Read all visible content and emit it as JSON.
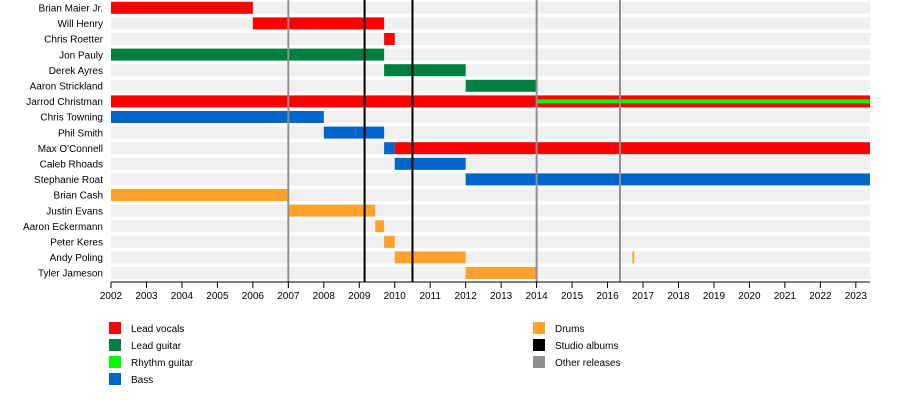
{
  "chart_data": {
    "type": "timeline",
    "xlim": [
      2002,
      2023.4
    ],
    "x_ticks": [
      "2002",
      "2003",
      "2004",
      "2005",
      "2006",
      "2007",
      "2008",
      "2009",
      "2010",
      "2011",
      "2012",
      "2013",
      "2014",
      "2015",
      "2016",
      "2017",
      "2018",
      "2019",
      "2020",
      "2021",
      "2022",
      "2023"
    ],
    "members": [
      "Brian Maier Jr.",
      "Will Henry",
      "Chris Roetter",
      "Jon Pauly",
      "Derek Ayres",
      "Aaron Strickland",
      "Jarrod Christman",
      "Chris Towning",
      "Phil Smith",
      "Max O'Connell",
      "Caleb Rhoads",
      "Stephanie Roat",
      "Brian Cash",
      "Justin Evans",
      "Aaron Eckermann",
      "Peter Keres",
      "Andy Poling",
      "Tyler Jameson"
    ],
    "roles": [
      {
        "name": "Lead vocals",
        "color": "#ff0000"
      },
      {
        "name": "Lead guitar",
        "color": "#008040"
      },
      {
        "name": "Rhythm guitar",
        "color": "#00ff00"
      },
      {
        "name": "Bass",
        "color": "#0066cc"
      },
      {
        "name": "Drums",
        "color": "#ffa12b"
      },
      {
        "name": "Studio albums",
        "color": "#000000"
      },
      {
        "name": "Other releases",
        "color": "#8f8f8f"
      }
    ],
    "bars": [
      {
        "member": 0,
        "role": 0,
        "start": 2002.0,
        "end": 2006.0
      },
      {
        "member": 1,
        "role": 0,
        "start": 2006.0,
        "end": 2009.7
      },
      {
        "member": 2,
        "role": 0,
        "start": 2009.7,
        "end": 2010.0
      },
      {
        "member": 3,
        "role": 1,
        "start": 2002.0,
        "end": 2009.7
      },
      {
        "member": 4,
        "role": 1,
        "start": 2009.7,
        "end": 2012.0
      },
      {
        "member": 5,
        "role": 1,
        "start": 2012.0,
        "end": 2014.0
      },
      {
        "member": 6,
        "role": 0,
        "start": 2002.0,
        "end": 2023.4
      },
      {
        "member": 6,
        "role": 2,
        "start": 2014.0,
        "end": 2023.4,
        "inner": true
      },
      {
        "member": 7,
        "role": 3,
        "start": 2002.0,
        "end": 2008.0
      },
      {
        "member": 8,
        "role": 3,
        "start": 2008.0,
        "end": 2009.7
      },
      {
        "member": 9,
        "role": 3,
        "start": 2009.7,
        "end": 2010.0
      },
      {
        "member": 9,
        "role": 0,
        "start": 2010.0,
        "end": 2023.4
      },
      {
        "member": 10,
        "role": 3,
        "start": 2010.0,
        "end": 2012.0
      },
      {
        "member": 11,
        "role": 3,
        "start": 2012.0,
        "end": 2023.4
      },
      {
        "member": 12,
        "role": 4,
        "start": 2002.0,
        "end": 2007.0
      },
      {
        "member": 13,
        "role": 4,
        "start": 2007.0,
        "end": 2009.45
      },
      {
        "member": 14,
        "role": 4,
        "start": 2009.45,
        "end": 2009.7
      },
      {
        "member": 15,
        "role": 4,
        "start": 2009.7,
        "end": 2010.0
      },
      {
        "member": 16,
        "role": 4,
        "start": 2010.0,
        "end": 2012.0
      },
      {
        "member": 16,
        "role": 4,
        "start": 2016.7,
        "end": 2016.75
      },
      {
        "member": 17,
        "role": 4,
        "start": 2012.0,
        "end": 2014.0
      }
    ],
    "events": [
      {
        "role": 6,
        "x": 2007.0
      },
      {
        "role": 5,
        "x": 2009.15
      },
      {
        "role": 5,
        "x": 2010.5
      },
      {
        "role": 6,
        "x": 2014.0
      },
      {
        "role": 6,
        "x": 2016.35
      }
    ]
  }
}
